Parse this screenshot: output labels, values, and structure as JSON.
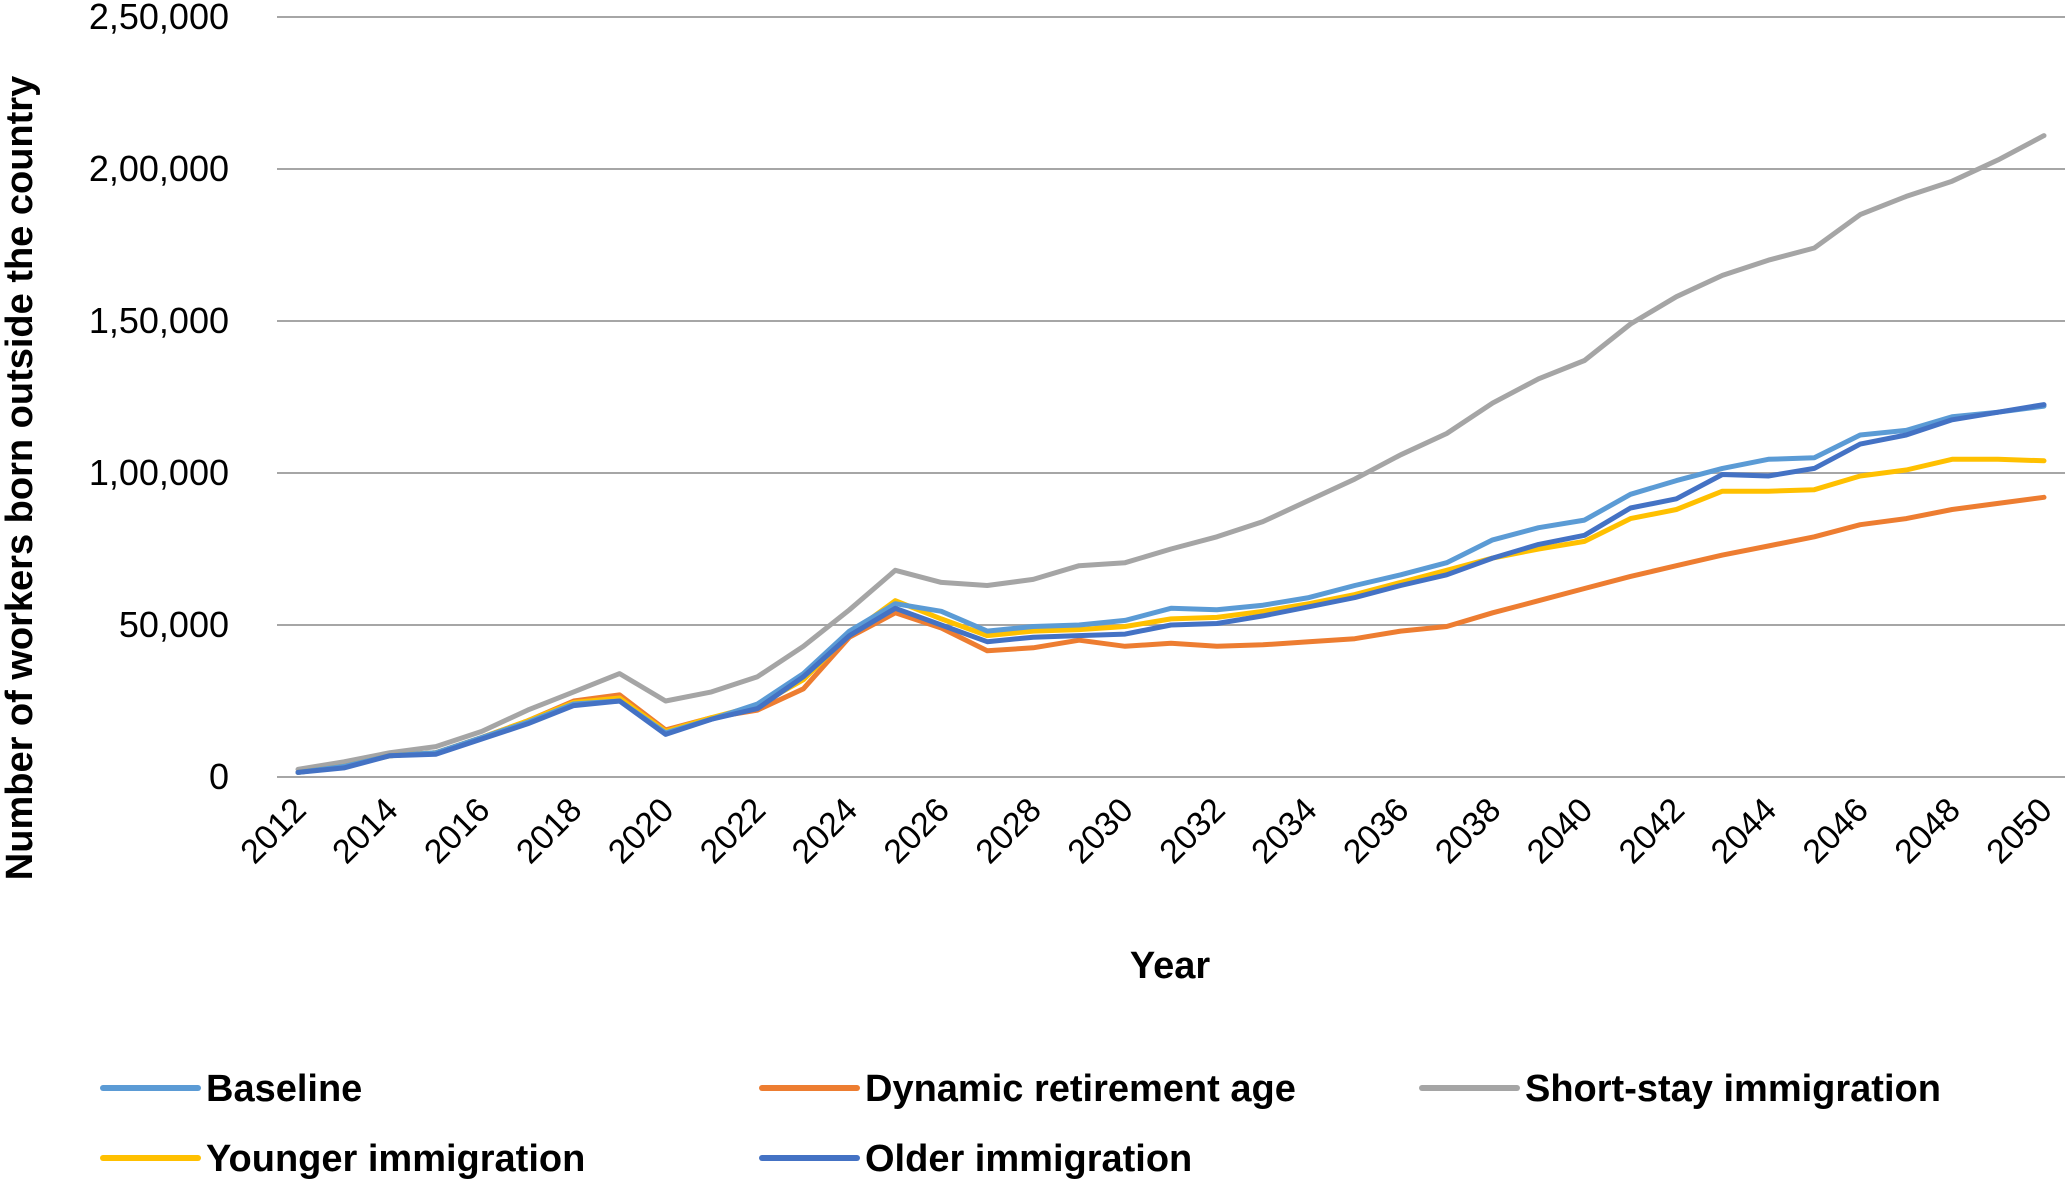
{
  "chart_data": {
    "type": "line",
    "xlabel": "Year",
    "ylabel": "Number of workers born outside the country",
    "ylim": [
      0,
      250000
    ],
    "y_ticks": [
      {
        "value": 0,
        "label": "0"
      },
      {
        "value": 50000,
        "label": "50,000"
      },
      {
        "value": 100000,
        "label": "1,00,000"
      },
      {
        "value": 150000,
        "label": "1,50,000"
      },
      {
        "value": 200000,
        "label": "2,00,000"
      },
      {
        "value": 250000,
        "label": "2,50,000"
      }
    ],
    "x_tick_labels": [
      "2012",
      "2014",
      "2016",
      "2018",
      "2020",
      "2022",
      "2024",
      "2026",
      "2028",
      "2030",
      "2032",
      "2034",
      "2036",
      "2038",
      "2040",
      "2042",
      "2044",
      "2046",
      "2048",
      "2050"
    ],
    "x": [
      2012,
      2013,
      2014,
      2015,
      2016,
      2017,
      2018,
      2019,
      2020,
      2021,
      2022,
      2023,
      2024,
      2025,
      2026,
      2027,
      2028,
      2029,
      2030,
      2031,
      2032,
      2033,
      2034,
      2035,
      2036,
      2037,
      2038,
      2039,
      2040,
      2041,
      2042,
      2043,
      2044,
      2045,
      2046,
      2047,
      2048,
      2049,
      2050
    ],
    "grid": true,
    "legend_position": "bottom",
    "series": [
      {
        "name": "Short-stay immigration",
        "color": "#a5a5a5",
        "values": [
          2500,
          5000,
          8000,
          10000,
          15000,
          22000,
          28000,
          34000,
          25000,
          28000,
          33000,
          43000,
          55000,
          68000,
          64000,
          63000,
          65000,
          69500,
          70500,
          75000,
          79000,
          84000,
          91000,
          98000,
          106000,
          113000,
          123000,
          131000,
          137000,
          149000,
          158000,
          165000,
          170000,
          174000,
          185000,
          191000,
          196000,
          203000,
          211000
        ]
      },
      {
        "name": "Dynamic retirement age",
        "color": "#ed7d31",
        "values": [
          1500,
          3500,
          7000,
          8000,
          13000,
          18500,
          25000,
          27000,
          15500,
          19500,
          22000,
          29000,
          46000,
          54000,
          49000,
          41500,
          42500,
          45000,
          43000,
          44000,
          43000,
          43500,
          44500,
          45500,
          48000,
          49500,
          54000,
          58000,
          62000,
          66000,
          69500,
          73000,
          76000,
          79000,
          83000,
          85000,
          88000,
          90000,
          92000
        ]
      },
      {
        "name": "Younger immigration",
        "color": "#ffc000",
        "values": [
          1500,
          3500,
          7000,
          8000,
          13000,
          18500,
          24500,
          26000,
          15000,
          19500,
          23500,
          32000,
          47000,
          58000,
          52000,
          46500,
          48000,
          48500,
          49500,
          52000,
          52500,
          54500,
          57000,
          60000,
          64000,
          68000,
          72000,
          75000,
          77500,
          85000,
          88000,
          94000,
          94000,
          94500,
          99000,
          101000,
          104500,
          104500,
          104000
        ]
      },
      {
        "name": "Baseline",
        "color": "#5b9bd5",
        "values": [
          1500,
          3500,
          7000,
          8000,
          13000,
          18000,
          24000,
          25000,
          14500,
          19000,
          24000,
          34000,
          48000,
          57000,
          54500,
          48000,
          49500,
          50000,
          51500,
          55500,
          55000,
          56500,
          59000,
          63000,
          66500,
          70500,
          78000,
          82000,
          84500,
          93000,
          97500,
          101500,
          104500,
          105000,
          112500,
          114000,
          118500,
          120000,
          122000
        ]
      },
      {
        "name": "Older immigration",
        "color": "#4472c4",
        "values": [
          1500,
          3000,
          7000,
          7500,
          12500,
          17500,
          23500,
          25000,
          14000,
          19000,
          22500,
          33000,
          46500,
          55500,
          50000,
          44500,
          46000,
          46500,
          47000,
          50000,
          50500,
          53000,
          56000,
          59000,
          63000,
          66500,
          72000,
          76500,
          79500,
          88500,
          91500,
          99500,
          99000,
          101500,
          109500,
          112500,
          117500,
          120000,
          122500
        ]
      }
    ],
    "legend": [
      {
        "name": "Baseline",
        "color": "#5b9bd5"
      },
      {
        "name": "Dynamic retirement age",
        "color": "#ed7d31"
      },
      {
        "name": "Short-stay immigration",
        "color": "#a5a5a5"
      },
      {
        "name": "Younger immigration",
        "color": "#ffc000"
      },
      {
        "name": "Older immigration",
        "color": "#4472c4"
      }
    ]
  }
}
